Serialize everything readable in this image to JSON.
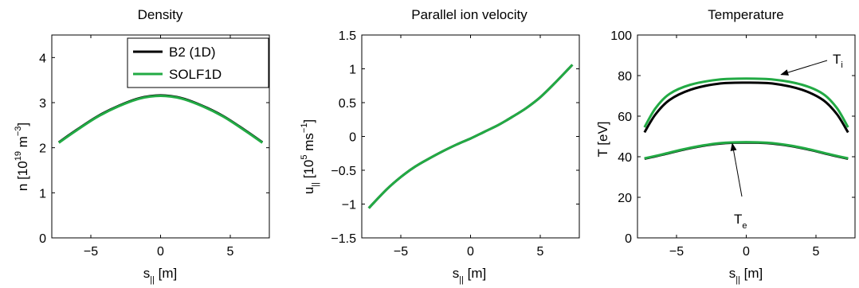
{
  "figure": {
    "background": "#ffffff"
  },
  "chart_data": [
    {
      "type": "line",
      "title": "Density",
      "xlabel": "s",
      "xlabel_sub": "||",
      "xlabel_unit": " [m]",
      "ylabel": "n [10",
      "ylabel_sup": "19",
      "ylabel_mid": " m",
      "ylabel_sup2": "−3",
      "ylabel_end": "]",
      "xlim": [
        -7.8,
        7.8
      ],
      "ylim": [
        0,
        4.5
      ],
      "xticks": [
        -5,
        0,
        5
      ],
      "xtick_labels": [
        "−5",
        "0",
        "5"
      ],
      "yticks": [
        0,
        1,
        2,
        3,
        4
      ],
      "ytick_labels": [
        "0",
        "1",
        "2",
        "3",
        "4"
      ],
      "legend": {
        "position": "top-right",
        "entries": [
          {
            "name": "B2 (1D)",
            "color": "#000000"
          },
          {
            "name": "SOLF1D",
            "color": "#22aa44"
          }
        ]
      },
      "series": [
        {
          "name": "B2 (1D)",
          "color": "#000000",
          "x": [
            -7.3,
            -6,
            -4.5,
            -3,
            -1.5,
            0,
            1.5,
            3,
            4.5,
            6,
            7.3
          ],
          "y": [
            2.12,
            2.4,
            2.7,
            2.93,
            3.1,
            3.16,
            3.1,
            2.93,
            2.7,
            2.4,
            2.12
          ]
        },
        {
          "name": "SOLF1D",
          "color": "#22aa44",
          "x": [
            -7.3,
            -6,
            -4.5,
            -3,
            -1.5,
            0,
            1.5,
            3,
            4.5,
            6,
            7.3
          ],
          "y": [
            2.11,
            2.39,
            2.69,
            2.92,
            3.09,
            3.15,
            3.09,
            2.92,
            2.69,
            2.39,
            2.11
          ]
        }
      ]
    },
    {
      "type": "line",
      "title": "Parallel ion velocity",
      "xlabel": "s",
      "xlabel_sub": "||",
      "xlabel_unit": " [m]",
      "ylabel": "u",
      "ylabel_sub": "||",
      "ylabel_mid": " [10",
      "ylabel_sup": "5",
      "ylabel_mid2": " ms",
      "ylabel_sup2": "−1",
      "ylabel_end": "]",
      "xlim": [
        -7.8,
        7.8
      ],
      "ylim": [
        -1.5,
        1.5
      ],
      "xticks": [
        -5,
        0,
        5
      ],
      "xtick_labels": [
        "−5",
        "0",
        "5"
      ],
      "yticks": [
        -1.5,
        -1,
        -0.5,
        0,
        0.5,
        1,
        1.5
      ],
      "ytick_labels": [
        "−1.5",
        "−1",
        "−0.5",
        "0",
        "0.5",
        "1",
        "1.5"
      ],
      "series": [
        {
          "name": "B2 (1D)",
          "color": "#000000",
          "x": [
            -7.3,
            -6,
            -5,
            -4,
            -3,
            -2,
            -1,
            0,
            1,
            2,
            3,
            4,
            5,
            6,
            7.3
          ],
          "y": [
            -1.06,
            -0.78,
            -0.6,
            -0.45,
            -0.33,
            -0.22,
            -0.12,
            -0.03,
            0.07,
            0.17,
            0.29,
            0.42,
            0.58,
            0.78,
            1.06
          ]
        },
        {
          "name": "SOLF1D",
          "color": "#22aa44",
          "x": [
            -7.3,
            -6,
            -5,
            -4,
            -3,
            -2,
            -1,
            0,
            1,
            2,
            3,
            4,
            5,
            6,
            7.3
          ],
          "y": [
            -1.06,
            -0.78,
            -0.6,
            -0.45,
            -0.33,
            -0.22,
            -0.12,
            -0.03,
            0.07,
            0.17,
            0.29,
            0.42,
            0.58,
            0.78,
            1.06
          ]
        }
      ]
    },
    {
      "type": "line",
      "title": "Temperature",
      "xlabel": "s",
      "xlabel_sub": "||",
      "xlabel_unit": " [m]",
      "ylabel": "T [eV]",
      "xlim": [
        -7.8,
        7.8
      ],
      "ylim": [
        0,
        100
      ],
      "xticks": [
        -5,
        0,
        5
      ],
      "xtick_labels": [
        "−5",
        "0",
        "5"
      ],
      "yticks": [
        0,
        20,
        40,
        60,
        80,
        100
      ],
      "ytick_labels": [
        "0",
        "20",
        "40",
        "60",
        "80",
        "100"
      ],
      "annotations": [
        {
          "text": "T",
          "sub": "i",
          "x": 6.2,
          "y": 88,
          "arrow_to": [
            2.5,
            80.5
          ]
        },
        {
          "text": "T",
          "sub": "e",
          "x": -1.4,
          "y": 11,
          "arrow_to": [
            -1.0,
            46.5
          ]
        }
      ],
      "series": [
        {
          "name": "B2 (1D) Ti",
          "color": "#000000",
          "x": [
            -7.3,
            -6.5,
            -5.5,
            -4,
            -2,
            0,
            2,
            4,
            5.5,
            6.5,
            7.3
          ],
          "y": [
            52,
            61,
            68,
            73,
            76,
            76.5,
            76,
            73,
            68,
            61,
            52
          ]
        },
        {
          "name": "SOLF1D Ti",
          "color": "#22aa44",
          "x": [
            -7.3,
            -6.5,
            -5.5,
            -4,
            -2,
            0,
            2,
            4,
            5.5,
            6.5,
            7.3
          ],
          "y": [
            54.5,
            64,
            71,
            75.5,
            78,
            78.5,
            78,
            75.5,
            71,
            64,
            54.5
          ]
        },
        {
          "name": "B2 (1D) Te",
          "color": "#000000",
          "x": [
            -7.3,
            -6,
            -4.5,
            -3,
            -1.5,
            0,
            1.5,
            3,
            4.5,
            6,
            7.3
          ],
          "y": [
            39,
            41,
            43.5,
            45.5,
            46.7,
            47,
            46.7,
            45.5,
            43.5,
            41,
            39
          ]
        },
        {
          "name": "SOLF1D Te",
          "color": "#22aa44",
          "x": [
            -7.3,
            -6,
            -4.5,
            -3,
            -1.5,
            0,
            1.5,
            3,
            4.5,
            6,
            7.3
          ],
          "y": [
            39.2,
            41.2,
            43.7,
            45.7,
            46.9,
            47.2,
            46.9,
            45.7,
            43.7,
            41.2,
            39.2
          ]
        }
      ]
    }
  ]
}
